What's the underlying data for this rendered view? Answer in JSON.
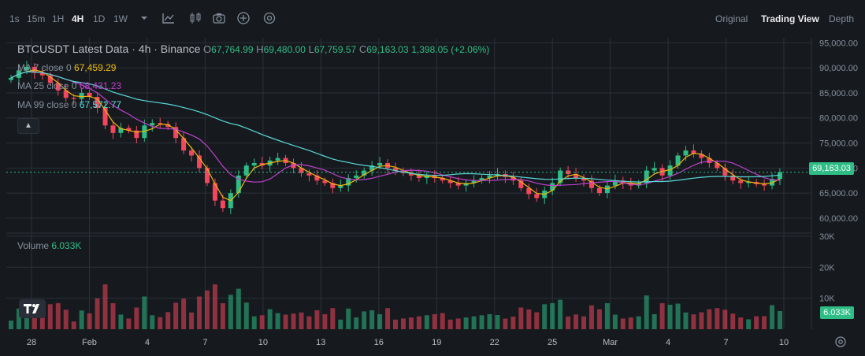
{
  "toolbar": {
    "intervals": [
      "1s",
      "15m",
      "1H",
      "4H",
      "1D",
      "1W"
    ],
    "active_interval": "4H",
    "icons": [
      "chevron-down-icon",
      "indicator-icon",
      "candle-style-icon",
      "camera-icon",
      "add-icon",
      "settings-icon"
    ],
    "views": [
      "Original",
      "Trading View",
      "Depth"
    ],
    "active_view": "Trading View"
  },
  "legend": {
    "title": "BTCUSDT Latest Data · 4h · Binance",
    "open_label": "O",
    "open": "67,764.99",
    "high_label": "H",
    "high": "69,480.00",
    "low_label": "L",
    "low": "67,759.57",
    "close_label": "C",
    "close": "69,163.03",
    "change": "1,398.05 (+2.06%)"
  },
  "ma": [
    {
      "label": "MA 7 close 0",
      "value": "67,459.29",
      "color": "#f0b90b"
    },
    {
      "label": "MA 25 close 0",
      "value": "68,431.23",
      "color": "#c040d0"
    },
    {
      "label": "MA 99 close 0",
      "value": "67,572.77",
      "color": "#5ad8d8"
    }
  ],
  "volume": {
    "label": "Volume",
    "value": "6.033K"
  },
  "price_axis": [
    "95,000.00",
    "90,000.00",
    "85,000.00",
    "80,000.00",
    "75,000.00",
    "70,000.00",
    "65,000.00",
    "60,000.00"
  ],
  "volume_axis": [
    "30K",
    "20K",
    "10K"
  ],
  "date_axis": [
    "28",
    "Feb",
    "4",
    "7",
    "10",
    "13",
    "16",
    "19",
    "22",
    "25",
    "Mar",
    "4",
    "7",
    "10"
  ],
  "current_price": "69,163.03",
  "current_volume": "6.033K",
  "colors": {
    "up": "#2ebd85",
    "down": "#f6465d",
    "background": "#161a1e",
    "grid": "#2b3139"
  },
  "chart_data": {
    "type": "candlestick",
    "price_range": [
      57000,
      96000
    ],
    "volume_range": [
      0,
      31000
    ],
    "closes": [
      88000,
      89500,
      90200,
      89000,
      88500,
      87000,
      85500,
      84000,
      83800,
      85000,
      84200,
      82000,
      78500,
      77000,
      78000,
      77500,
      76000,
      78500,
      79000,
      78800,
      78200,
      76000,
      73500,
      72500,
      70000,
      67000,
      63500,
      62000,
      65000,
      68500,
      70500,
      71000,
      70500,
      71500,
      72000,
      71000,
      70000,
      69000,
      68500,
      67500,
      67000,
      66000,
      66500,
      68000,
      68500,
      69500,
      70500,
      71000,
      70000,
      69500,
      69000,
      68500,
      68000,
      68500,
      68000,
      67500,
      67000,
      66500,
      67000,
      67500,
      68000,
      68500,
      68800,
      68200,
      67500,
      66000,
      64800,
      64000,
      65500,
      67000,
      69500,
      68800,
      68000,
      67500,
      66000,
      65000,
      66500,
      67500,
      67000,
      66500,
      67000,
      69500,
      70000,
      68500,
      70500,
      72500,
      73500,
      72800,
      72000,
      71000,
      70000,
      68500,
      67500,
      67000,
      67200,
      66800,
      66500,
      67800,
      69163
    ]
  }
}
